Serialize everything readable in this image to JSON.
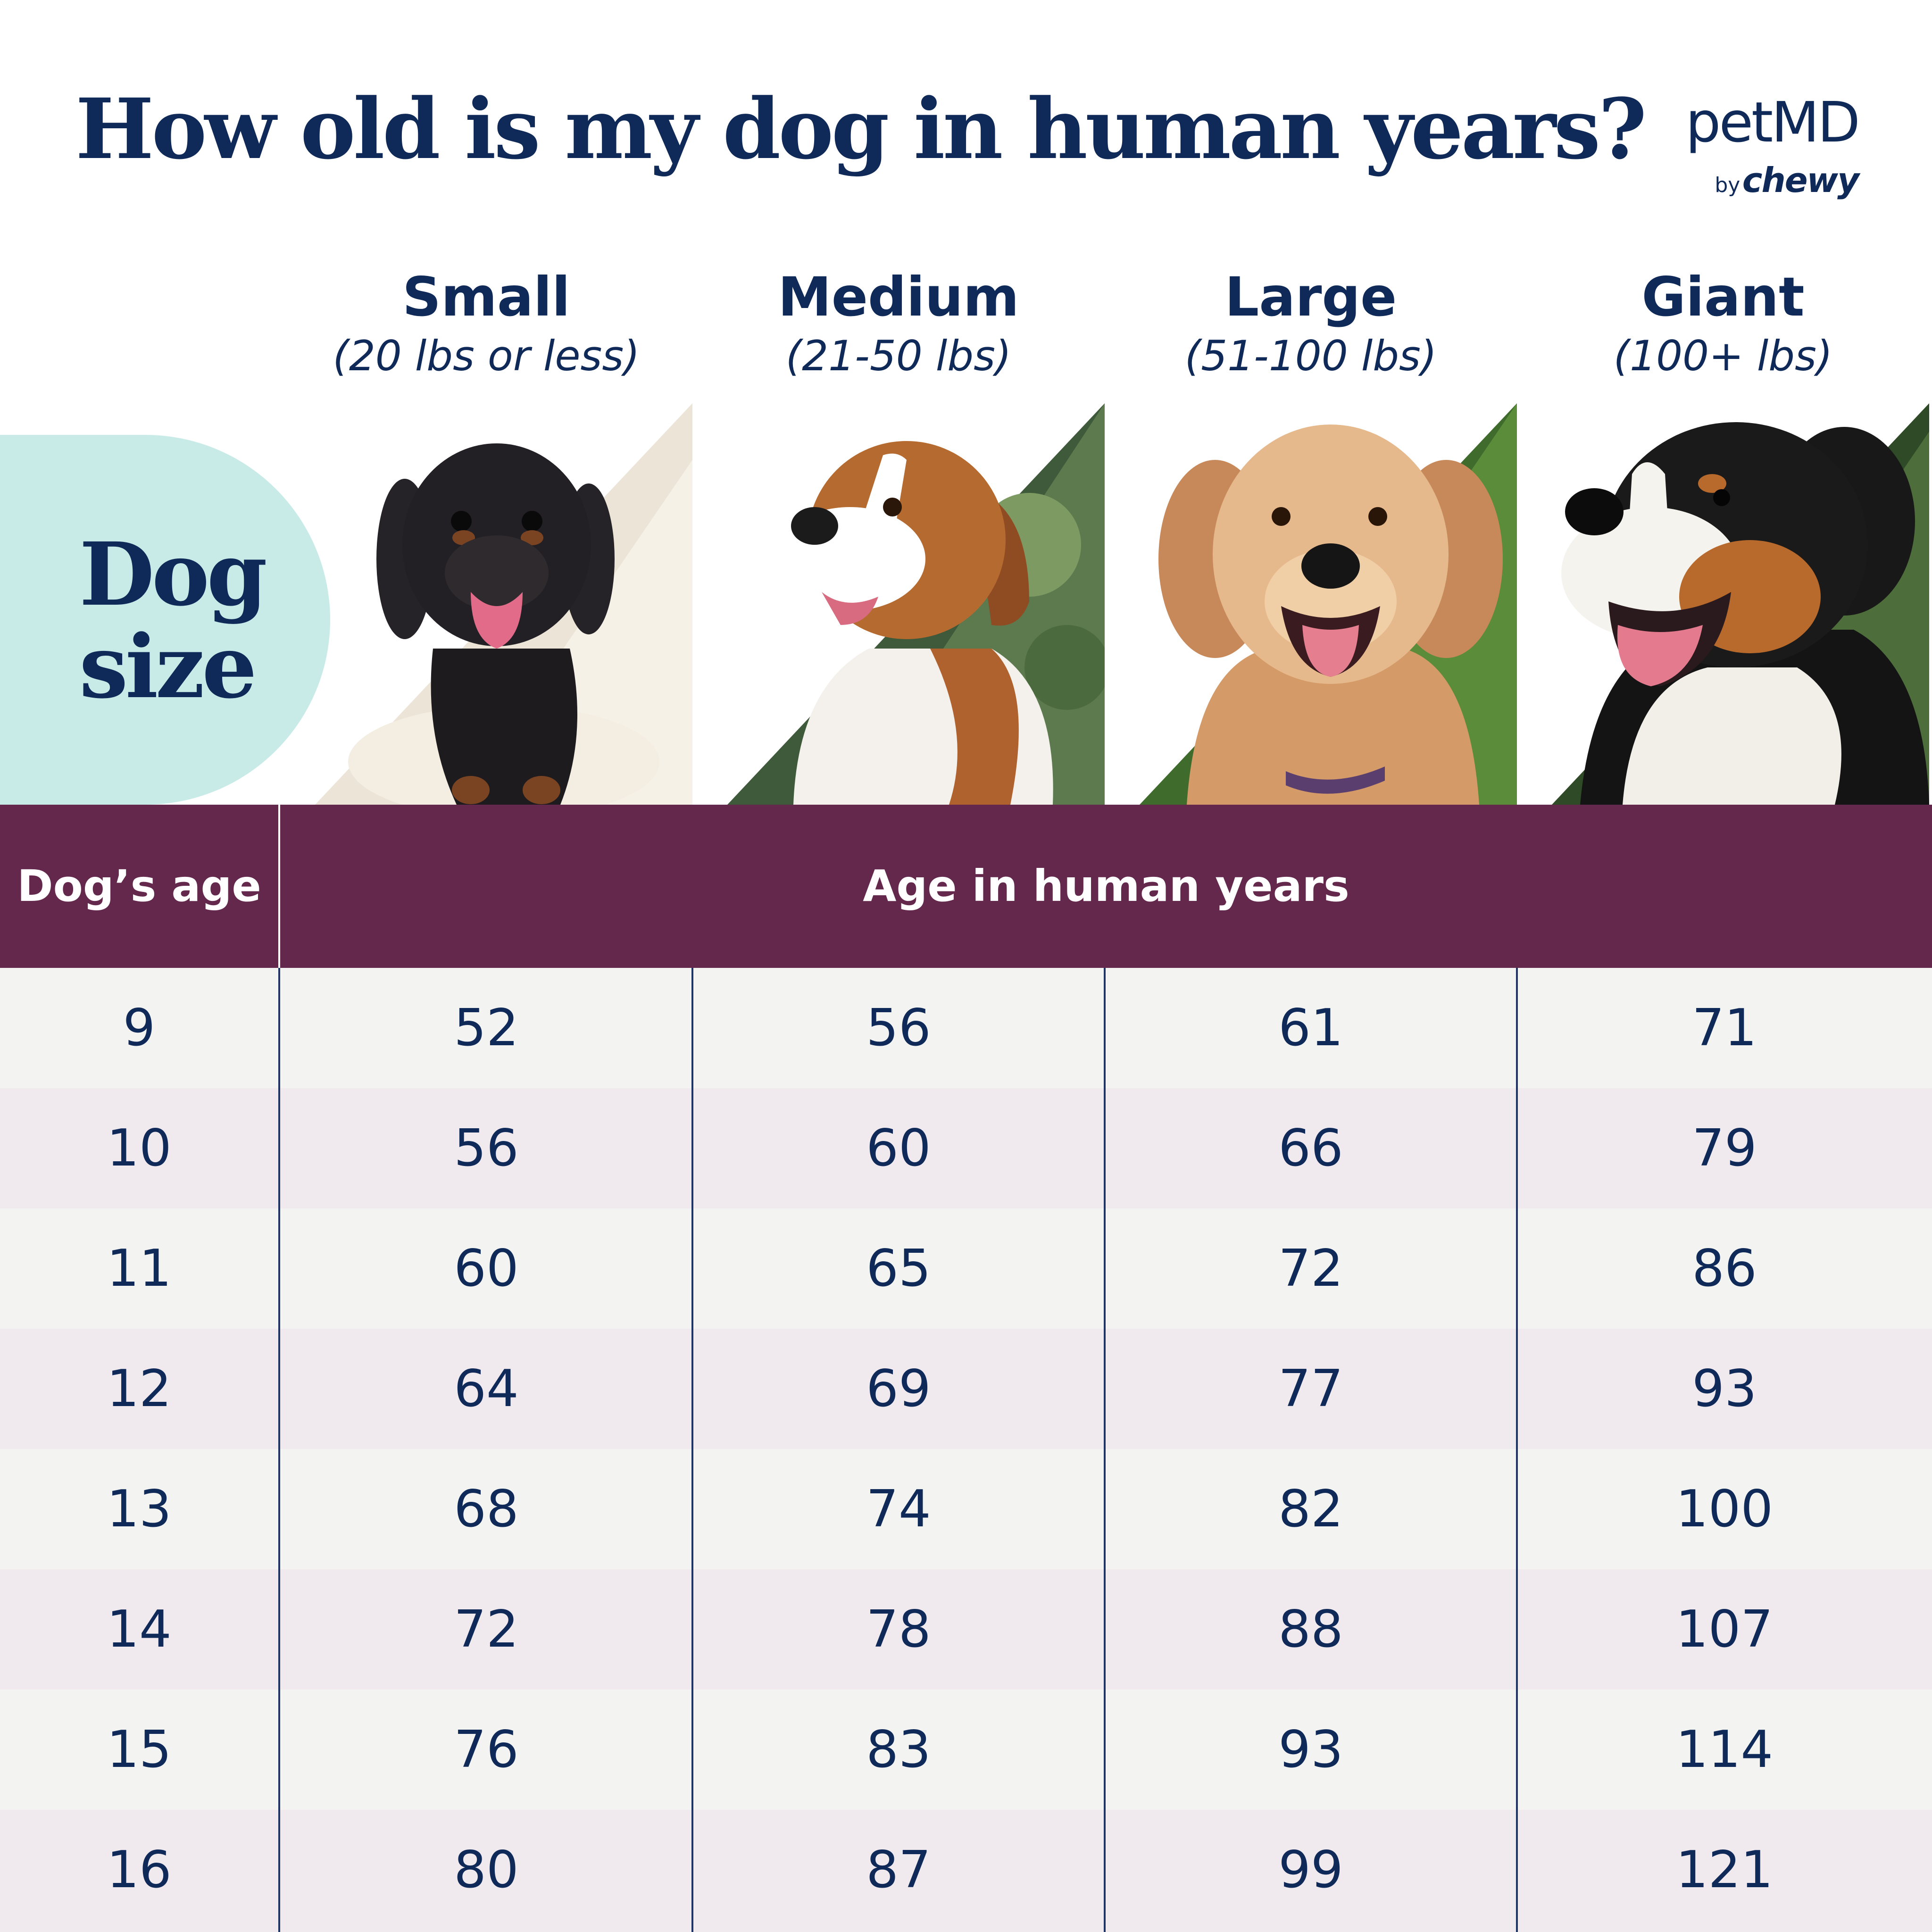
{
  "title": "How old is my dog in human years?",
  "logo": {
    "main": "petMD",
    "by": "by",
    "brand": "chewy"
  },
  "size_label": {
    "line1": "Dog",
    "line2": "size"
  },
  "sizes": [
    {
      "name": "Small",
      "range": "(20 lbs or less)"
    },
    {
      "name": "Medium",
      "range": "(21-50 lbs)"
    },
    {
      "name": "Large",
      "range": "(51-100 lbs)"
    },
    {
      "name": "Giant",
      "range": "(100+ lbs)"
    }
  ],
  "table": {
    "age_header": "Dog’s age",
    "human_header": "Age in human years",
    "rows": [
      {
        "age": "9",
        "values": [
          "52",
          "56",
          "61",
          "71"
        ]
      },
      {
        "age": "10",
        "values": [
          "56",
          "60",
          "66",
          "79"
        ]
      },
      {
        "age": "11",
        "values": [
          "60",
          "65",
          "72",
          "86"
        ]
      },
      {
        "age": "12",
        "values": [
          "64",
          "69",
          "77",
          "93"
        ]
      },
      {
        "age": "13",
        "values": [
          "68",
          "74",
          "82",
          "100"
        ]
      },
      {
        "age": "14",
        "values": [
          "72",
          "78",
          "88",
          "107"
        ]
      },
      {
        "age": "15",
        "values": [
          "76",
          "83",
          "93",
          "114"
        ]
      },
      {
        "age": "16",
        "values": [
          "80",
          "87",
          "99",
          "121"
        ]
      }
    ]
  },
  "colors": {
    "navy": "#0f2a59",
    "plum": "#64284d",
    "mint": "#c8ebe8",
    "row_light": "#f3f3f1",
    "row_tint": "#f0e9ee"
  }
}
